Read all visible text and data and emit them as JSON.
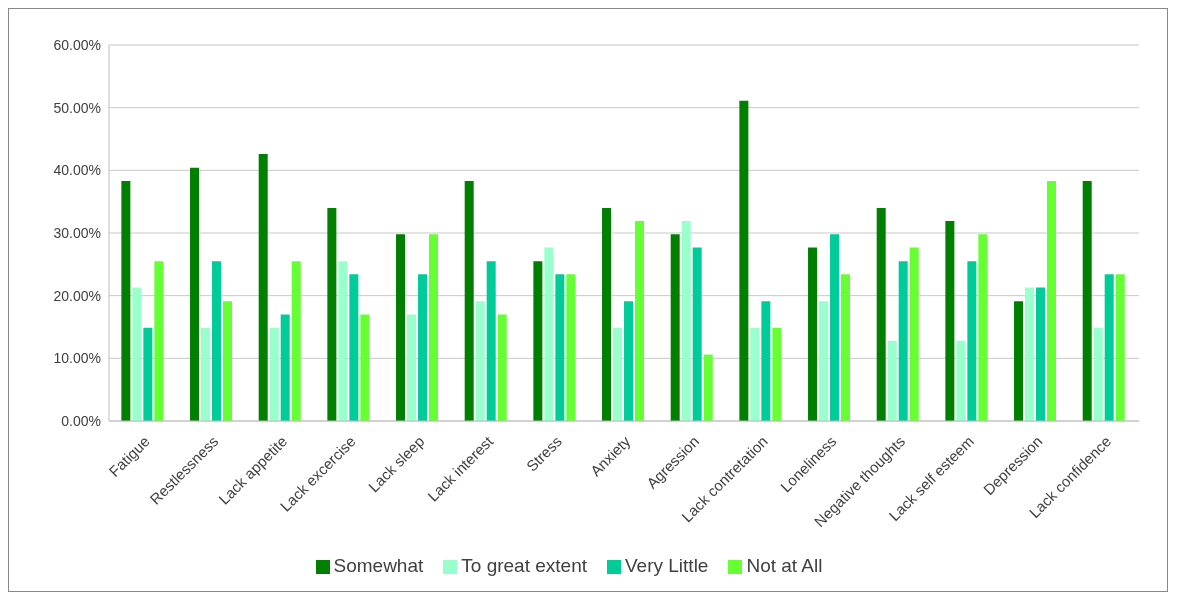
{
  "chart_data": {
    "type": "bar",
    "categories": [
      "Fatigue",
      "Restlessness",
      "Lack appetite",
      "Lack excercise",
      "Lack sleep",
      "Lack interest",
      "Stress",
      "Anxiety",
      "Agression",
      "Lack contretation",
      "Loneliness",
      "Negative thoughts",
      "Lack self esteem",
      "Depression",
      "Lack confidence"
    ],
    "series": [
      {
        "name": "Somewhat",
        "color": "#007f00",
        "values": [
          38.3,
          40.4,
          42.6,
          34.0,
          29.8,
          38.3,
          25.5,
          34.0,
          29.8,
          51.1,
          27.7,
          34.0,
          31.9,
          19.1,
          38.3
        ]
      },
      {
        "name": "To great extent",
        "color": "#99ffcc",
        "values": [
          21.3,
          14.9,
          14.9,
          25.5,
          17.0,
          19.1,
          27.7,
          14.9,
          31.9,
          14.9,
          19.1,
          12.8,
          12.8,
          21.3,
          14.9
        ]
      },
      {
        "name": "Very Little",
        "color": "#00cc99",
        "values": [
          14.9,
          25.5,
          17.0,
          23.4,
          23.4,
          25.5,
          23.4,
          19.1,
          27.7,
          19.1,
          29.8,
          25.5,
          25.5,
          21.3,
          23.4
        ]
      },
      {
        "name": "Not at All",
        "color": "#66ff33",
        "values": [
          25.5,
          19.1,
          25.5,
          17.0,
          29.8,
          17.0,
          23.4,
          31.9,
          10.6,
          14.9,
          23.4,
          27.7,
          29.8,
          38.3,
          23.4
        ]
      }
    ],
    "ylim": [
      0,
      60
    ],
    "yticks": [
      {
        "value": 0,
        "label": "0.00%"
      },
      {
        "value": 10,
        "label": "10.00%"
      },
      {
        "value": 20,
        "label": "20.00%"
      },
      {
        "value": 30,
        "label": "30.00%"
      },
      {
        "value": 40,
        "label": "40.00%"
      },
      {
        "value": 50,
        "label": "50.00%"
      },
      {
        "value": 60,
        "label": "60.00%"
      }
    ],
    "grid": "y",
    "legend": "bottom"
  }
}
